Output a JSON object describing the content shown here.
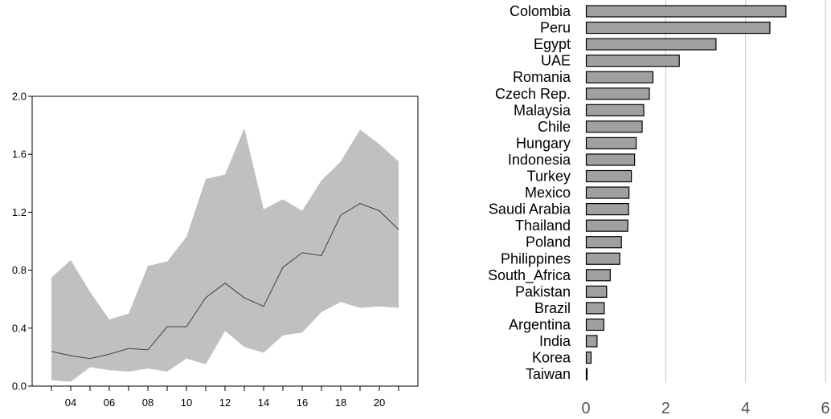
{
  "chart_data": [
    {
      "type": "area",
      "x": [
        2003,
        2004,
        2005,
        2006,
        2007,
        2008,
        2009,
        2010,
        2011,
        2012,
        2013,
        2014,
        2015,
        2016,
        2017,
        2018,
        2019,
        2020,
        2021
      ],
      "series": [
        {
          "role": "upper",
          "values": [
            0.75,
            0.87,
            0.65,
            0.46,
            0.5,
            0.83,
            0.86,
            1.03,
            1.43,
            1.46,
            1.78,
            1.22,
            1.29,
            1.21,
            1.42,
            1.55,
            1.77,
            1.67,
            1.55
          ]
        },
        {
          "role": "median",
          "values": [
            0.24,
            0.21,
            0.19,
            0.22,
            0.26,
            0.25,
            0.41,
            0.41,
            0.61,
            0.71,
            0.61,
            0.55,
            0.82,
            0.92,
            0.9,
            1.18,
            1.26,
            1.21,
            1.08
          ]
        },
        {
          "role": "lower",
          "values": [
            0.04,
            0.03,
            0.13,
            0.11,
            0.1,
            0.12,
            0.1,
            0.19,
            0.15,
            0.38,
            0.27,
            0.23,
            0.35,
            0.37,
            0.51,
            0.58,
            0.54,
            0.55,
            0.54
          ]
        }
      ],
      "xlim": [
        2002,
        2022
      ],
      "ylim": [
        0.0,
        2.0
      ],
      "yticks": [
        "0.0",
        "0.4",
        "0.8",
        "1.2",
        "1.6",
        "2.0"
      ],
      "xtick_labels": [
        "04",
        "06",
        "08",
        "10",
        "12",
        "14",
        "16",
        "18",
        "20"
      ],
      "xtick_label_years": [
        2004,
        2006,
        2008,
        2010,
        2012,
        2014,
        2016,
        2018,
        2020
      ],
      "colors": {
        "band": "#c0c0c0",
        "line": "#404040"
      }
    },
    {
      "type": "bar",
      "orientation": "horizontal",
      "categories": [
        "Colombia",
        "Peru",
        "Egypt",
        "UAE",
        "Romania",
        "Czech Rep.",
        "Malaysia",
        "Chile",
        "Hungary",
        "Indonesia",
        "Turkey",
        "Mexico",
        "Saudi Arabia",
        "Thailand",
        "Poland",
        "Philippines",
        "South_Africa",
        "Pakistan",
        "Brazil",
        "Argentina",
        "India",
        "Korea",
        "Taiwan"
      ],
      "values": [
        5.0,
        4.6,
        3.25,
        2.33,
        1.67,
        1.58,
        1.44,
        1.4,
        1.25,
        1.21,
        1.13,
        1.07,
        1.06,
        1.04,
        0.88,
        0.84,
        0.6,
        0.51,
        0.45,
        0.44,
        0.27,
        0.12,
        0.02
      ],
      "xlim": [
        0,
        6
      ],
      "xticks": [
        "0",
        "2",
        "4",
        "6"
      ],
      "grid": true,
      "colors": {
        "bar": "#a0a0a0",
        "edge": "#000000",
        "grid": "#d0d0d0"
      }
    }
  ]
}
